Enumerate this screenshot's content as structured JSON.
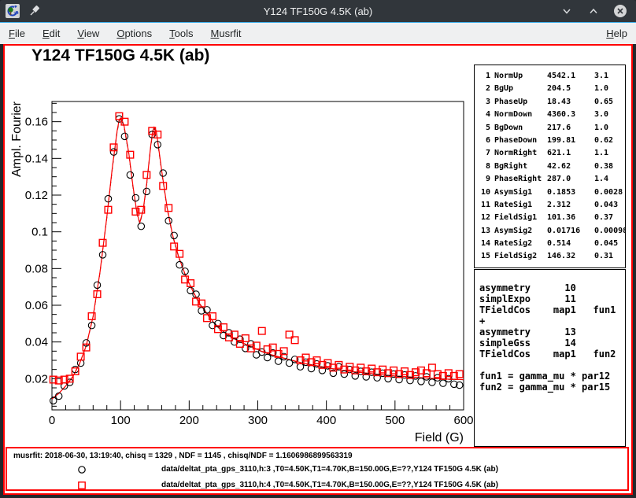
{
  "titlebar": {
    "title": "Y124 TF150G 4.5K (ab)",
    "icons": {
      "app": "root-logo-icon",
      "pin": "pin-icon",
      "minimize": "chevron-down-icon",
      "maximize": "chevron-up-icon",
      "close": "close-circle-icon"
    }
  },
  "menubar": {
    "items": [
      "File",
      "Edit",
      "View",
      "Options",
      "Tools",
      "Musrfit"
    ],
    "right_items": [
      "Help"
    ]
  },
  "colors": {
    "titlebar_bg": "#31363b",
    "menubar_bg": "#eff0f1",
    "accent": "#3daee9",
    "canvas_border": "#ff0000",
    "series1": "#000000",
    "series2": "#ff0000"
  },
  "param_table": {
    "rows": [
      [
        1,
        "NormUp",
        "4542.1",
        "3.1"
      ],
      [
        2,
        "BgUp",
        "204.5",
        "1.0"
      ],
      [
        3,
        "PhaseUp",
        "18.43",
        "0.65"
      ],
      [
        4,
        "NormDown",
        "4360.3",
        "3.0"
      ],
      [
        5,
        "BgDown",
        "217.6",
        "1.0"
      ],
      [
        6,
        "PhaseDown",
        "199.81",
        "0.62"
      ],
      [
        7,
        "NormRight",
        "621.1",
        "1.1"
      ],
      [
        8,
        "BgRight",
        "42.62",
        "0.38"
      ],
      [
        9,
        "PhaseRight",
        "287.0",
        "1.4"
      ],
      [
        10,
        "AsymSig1",
        "0.1853",
        "0.0028"
      ],
      [
        11,
        "RateSig1",
        "2.312",
        "0.043"
      ],
      [
        12,
        "FieldSig1",
        "101.36",
        "0.37"
      ],
      [
        13,
        "AsymSig2",
        "0.01716",
        "0.00098"
      ],
      [
        14,
        "RateSig2",
        "0.514",
        "0.045"
      ],
      [
        15,
        "FieldSig2",
        "146.32",
        "0.31"
      ]
    ]
  },
  "theory": {
    "lines": [
      "asymmetry      10",
      "simplExpo      11",
      "TFieldCos    map1   fun1",
      "+",
      "asymmetry      13",
      "simpleGss      14",
      "TFieldCos    map1   fun2",
      "",
      "fun1 = gamma_mu * par12",
      "fun2 = gamma_mu * par15"
    ]
  },
  "footer": {
    "status": "musrfit: 2018-06-30, 13:19:40, chisq = 1329 , NDF = 1145 , chisq/NDF = 1.1606986899563319",
    "legend": [
      {
        "marker": "circle",
        "color": "#000000",
        "label": "data/deltat_pta_gps_3110,h:3 ,T0=4.50K,T1=4.70K,B=150.00G,E=??,Y124 TF150G 4.5K (ab)"
      },
      {
        "marker": "square",
        "color": "#ff0000",
        "label": "data/deltat_pta_gps_3110,h:4 ,T0=4.50K,T1=4.70K,B=150.00G,E=??,Y124 TF150G 4.5K (ab)"
      }
    ]
  },
  "chart_data": {
    "type": "scatter",
    "title": "Y124 TF150G 4.5K (ab)",
    "xlabel": "Field (G)",
    "ylabel": "Ampl. Fourier",
    "xlim": [
      0,
      600
    ],
    "ylim": [
      0.003,
      0.171
    ],
    "x_major_ticks": [
      0,
      100,
      200,
      300,
      400,
      500,
      600
    ],
    "x_minor_step": 20,
    "y_major_ticks": [
      0.02,
      0.04,
      0.06,
      0.08,
      0.1,
      0.12,
      0.14,
      0.16
    ],
    "y_minor_step": 0.005,
    "grid": false,
    "legend_position": "bottom-pad",
    "x": [
      2,
      10,
      18,
      26,
      34,
      42,
      50,
      58,
      66,
      74,
      82,
      90,
      98,
      106,
      114,
      122,
      130,
      138,
      146,
      154,
      162,
      170,
      178,
      186,
      194,
      202,
      210,
      218,
      226,
      234,
      242,
      250,
      258,
      266,
      274,
      282,
      290,
      298,
      306,
      314,
      322,
      330,
      338,
      346,
      354,
      362,
      370,
      378,
      386,
      394,
      402,
      410,
      418,
      426,
      434,
      442,
      450,
      458,
      466,
      474,
      482,
      490,
      498,
      506,
      514,
      522,
      530,
      538,
      546,
      554,
      562,
      570,
      578,
      586,
      594
    ],
    "series": [
      {
        "name": "data/deltat_pta_gps_3110,h:3 ,T0=4.50K,T1=4.70K,B=150.00G,E=??,Y124 TF150G 4.5K (ab)",
        "marker": "circle",
        "color": "#000000",
        "values": [
          0.008,
          0.0105,
          0.016,
          0.018,
          0.025,
          0.0285,
          0.0395,
          0.049,
          0.071,
          0.0875,
          0.118,
          0.1435,
          0.1615,
          0.152,
          0.131,
          0.1185,
          0.103,
          0.122,
          0.153,
          0.1475,
          0.132,
          0.106,
          0.098,
          0.082,
          0.0785,
          0.068,
          0.066,
          0.057,
          0.0575,
          0.049,
          0.05,
          0.0435,
          0.045,
          0.04,
          0.0415,
          0.0365,
          0.039,
          0.033,
          0.0345,
          0.0315,
          0.034,
          0.0295,
          0.032,
          0.0285,
          0.0305,
          0.0265,
          0.029,
          0.0255,
          0.028,
          0.0245,
          0.027,
          0.023,
          0.0265,
          0.0225,
          0.025,
          0.0215,
          0.024,
          0.021,
          0.0235,
          0.0205,
          0.023,
          0.02,
          0.0225,
          0.0195,
          0.022,
          0.019,
          0.0215,
          0.0185,
          0.021,
          0.018,
          0.0205,
          0.0175,
          0.02,
          0.017,
          0.0165
        ]
      },
      {
        "name": "data/deltat_pta_gps_3110,h:4 ,T0=4.50K,T1=4.70K,B=150.00G,E=??,Y124 TF150G 4.5K (ab)",
        "marker": "square",
        "color": "#ff0000",
        "values": [
          0.0195,
          0.019,
          0.0195,
          0.02,
          0.024,
          0.032,
          0.037,
          0.054,
          0.066,
          0.094,
          0.112,
          0.146,
          0.163,
          0.16,
          0.142,
          0.111,
          0.112,
          0.131,
          0.155,
          0.153,
          0.125,
          0.113,
          0.092,
          0.088,
          0.074,
          0.072,
          0.062,
          0.061,
          0.053,
          0.054,
          0.047,
          0.048,
          0.0425,
          0.044,
          0.039,
          0.042,
          0.0365,
          0.038,
          0.046,
          0.036,
          0.037,
          0.0335,
          0.035,
          0.044,
          0.041,
          0.03,
          0.0315,
          0.029,
          0.03,
          0.0275,
          0.0285,
          0.026,
          0.0275,
          0.025,
          0.0265,
          0.0245,
          0.026,
          0.024,
          0.0255,
          0.0235,
          0.025,
          0.023,
          0.0245,
          0.0225,
          0.024,
          0.022,
          0.0235,
          0.0245,
          0.023,
          0.026,
          0.0225,
          0.0215,
          0.023,
          0.0215,
          0.0225
        ]
      }
    ],
    "fit_curve": {
      "solid_color": "#ff0000",
      "dashed_color": "#000000",
      "points": [
        [
          0,
          0.009
        ],
        [
          10,
          0.012
        ],
        [
          20,
          0.016
        ],
        [
          30,
          0.021
        ],
        [
          40,
          0.028
        ],
        [
          50,
          0.038
        ],
        [
          60,
          0.054
        ],
        [
          70,
          0.078
        ],
        [
          80,
          0.108
        ],
        [
          88,
          0.135
        ],
        [
          95,
          0.155
        ],
        [
          98,
          0.161
        ],
        [
          100,
          0.162
        ],
        [
          103,
          0.16
        ],
        [
          105,
          0.158
        ],
        [
          112,
          0.143
        ],
        [
          118,
          0.125
        ],
        [
          124,
          0.11
        ],
        [
          128,
          0.105
        ],
        [
          133,
          0.112
        ],
        [
          138,
          0.126
        ],
        [
          144,
          0.147
        ],
        [
          147,
          0.155
        ],
        [
          149,
          0.157
        ],
        [
          152,
          0.155
        ],
        [
          154,
          0.15
        ],
        [
          160,
          0.133
        ],
        [
          168,
          0.113
        ],
        [
          176,
          0.098
        ],
        [
          185,
          0.086
        ],
        [
          195,
          0.076
        ],
        [
          205,
          0.068
        ],
        [
          215,
          0.061
        ],
        [
          225,
          0.056
        ],
        [
          235,
          0.051
        ],
        [
          245,
          0.047
        ],
        [
          255,
          0.0445
        ],
        [
          265,
          0.042
        ],
        [
          275,
          0.04
        ],
        [
          290,
          0.0375
        ],
        [
          305,
          0.035
        ],
        [
          320,
          0.033
        ],
        [
          335,
          0.0315
        ],
        [
          350,
          0.03
        ],
        [
          365,
          0.0285
        ],
        [
          380,
          0.0275
        ],
        [
          400,
          0.026
        ],
        [
          420,
          0.0248
        ],
        [
          440,
          0.0238
        ],
        [
          460,
          0.023
        ],
        [
          480,
          0.0222
        ],
        [
          500,
          0.0215
        ],
        [
          520,
          0.021
        ],
        [
          540,
          0.0205
        ],
        [
          560,
          0.02
        ],
        [
          580,
          0.0197
        ],
        [
          600,
          0.0195
        ]
      ]
    }
  }
}
